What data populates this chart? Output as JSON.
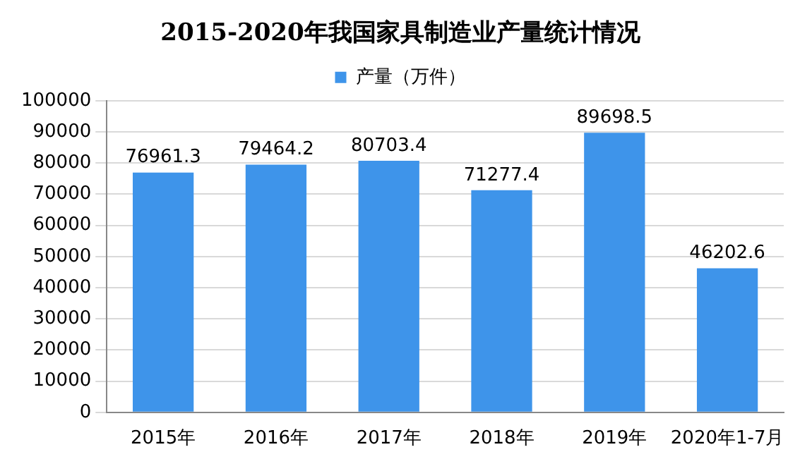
{
  "chart_data": {
    "type": "bar",
    "title": "2015-2020年我国家具制造业产量统计情况",
    "categories": [
      "2015年",
      "2016年",
      "2017年",
      "2018年",
      "2019年",
      "2020年1-7月"
    ],
    "series": [
      {
        "name": "产量（万件）",
        "color": "#3e94ea",
        "values": [
          76961.3,
          79464.2,
          80703.4,
          71277.4,
          89698.5,
          46202.6
        ]
      }
    ],
    "ylim": [
      0,
      100000
    ],
    "yticks": [
      0,
      10000,
      20000,
      30000,
      40000,
      50000,
      60000,
      70000,
      80000,
      90000,
      100000
    ],
    "grid": "y",
    "legend": "top",
    "data_labels": true
  }
}
